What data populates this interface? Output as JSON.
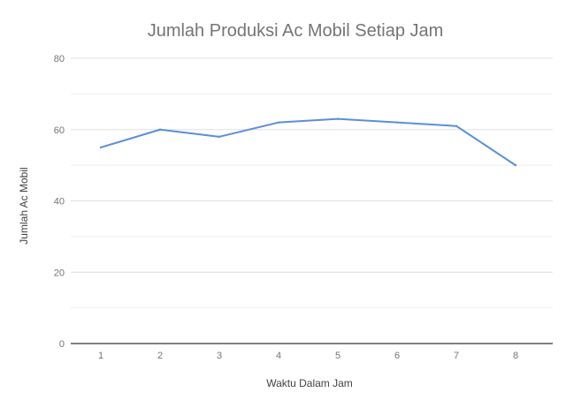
{
  "chart_data": {
    "type": "line",
    "title": "Jumlah Produksi Ac Mobil Setiap Jam",
    "xlabel": "Waktu Dalam Jam",
    "ylabel": "Jumlah Ac Mobil",
    "x": [
      1,
      2,
      3,
      4,
      5,
      6,
      7,
      8
    ],
    "series": [
      {
        "values": [
          55,
          60,
          58,
          62,
          63,
          62,
          61,
          50
        ]
      }
    ],
    "ylim": [
      0,
      80
    ],
    "y_ticks": [
      0,
      20,
      40,
      60,
      80
    ],
    "grid": true,
    "legend": "none",
    "colors": {
      "line": "#5b8fd9",
      "grid": "#e0e0e0",
      "axis": "#333333"
    }
  }
}
